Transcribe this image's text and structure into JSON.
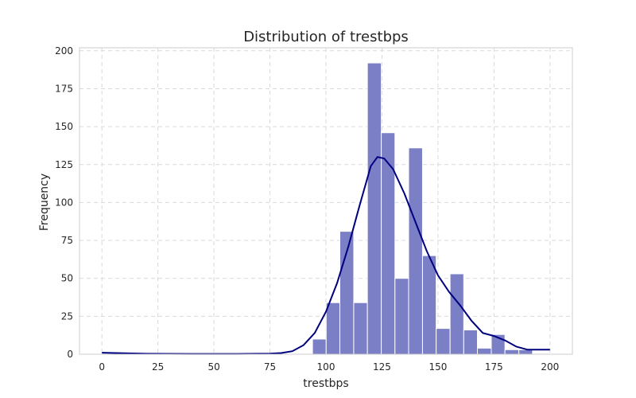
{
  "chart_data": {
    "type": "bar",
    "title": "Distribution of trestbps",
    "xlabel": "trestbps",
    "ylabel": "Frequency",
    "xlim": [
      -10,
      210
    ],
    "ylim": [
      0,
      202
    ],
    "xticks": [
      0,
      25,
      50,
      75,
      100,
      125,
      150,
      175,
      200
    ],
    "yticks": [
      0,
      25,
      50,
      75,
      100,
      125,
      150,
      175,
      200
    ],
    "grid": true,
    "bar_color": "#7b7fc6",
    "kde_color": "#00007f",
    "bins": [
      {
        "x0": 94.0,
        "x1": 100.1,
        "count": 10
      },
      {
        "x0": 100.1,
        "x1": 106.2,
        "count": 34
      },
      {
        "x0": 106.2,
        "x1": 112.4,
        "count": 81
      },
      {
        "x0": 112.4,
        "x1": 118.5,
        "count": 34
      },
      {
        "x0": 118.5,
        "x1": 124.7,
        "count": 192
      },
      {
        "x0": 124.7,
        "x1": 130.8,
        "count": 146
      },
      {
        "x0": 130.8,
        "x1": 136.9,
        "count": 50
      },
      {
        "x0": 136.9,
        "x1": 143.1,
        "count": 136
      },
      {
        "x0": 143.1,
        "x1": 149.2,
        "count": 65
      },
      {
        "x0": 149.2,
        "x1": 155.4,
        "count": 17
      },
      {
        "x0": 155.4,
        "x1": 161.5,
        "count": 53
      },
      {
        "x0": 161.5,
        "x1": 167.6,
        "count": 16
      },
      {
        "x0": 167.6,
        "x1": 173.8,
        "count": 4
      },
      {
        "x0": 173.8,
        "x1": 179.9,
        "count": 13
      },
      {
        "x0": 179.9,
        "x1": 186.1,
        "count": 3
      },
      {
        "x0": 186.1,
        "x1": 192.2,
        "count": 3
      }
    ],
    "kde": {
      "x": [
        0,
        20,
        40,
        60,
        75,
        80,
        85,
        90,
        95,
        100,
        105,
        110,
        115,
        120,
        123,
        126,
        130,
        135,
        140,
        145,
        150,
        155,
        160,
        165,
        170,
        175,
        180,
        185,
        190,
        195,
        200
      ],
      "y": [
        1,
        0.3,
        0.2,
        0.2,
        0.4,
        0.8,
        2,
        6,
        14,
        28,
        47,
        71,
        98,
        124,
        130,
        129,
        122,
        106,
        87,
        68,
        52,
        41,
        32,
        22,
        14,
        12,
        9,
        5,
        3,
        3,
        3
      ]
    }
  }
}
